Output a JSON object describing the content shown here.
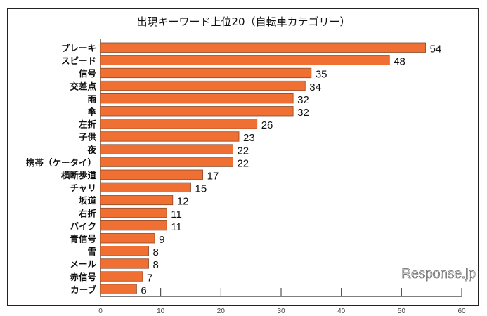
{
  "chart_data": {
    "type": "bar",
    "orientation": "horizontal",
    "title": "出現キーワード上位20（自転車カテゴリー）",
    "categories": [
      "ブレーキ",
      "スピード",
      "信号",
      "交差点",
      "雨",
      "傘",
      "左折",
      "子供",
      "夜",
      "携帯（ケータイ）",
      "横断歩道",
      "チャリ",
      "坂道",
      "右折",
      "バイク",
      "青信号",
      "雪",
      "メール",
      "赤信号",
      "カーブ"
    ],
    "values": [
      54,
      48,
      35,
      34,
      32,
      32,
      26,
      23,
      22,
      22,
      17,
      15,
      12,
      11,
      11,
      9,
      8,
      8,
      7,
      6
    ],
    "xlim": [
      0,
      60
    ],
    "xticks": [
      0,
      10,
      20,
      30,
      40,
      50,
      60
    ],
    "xlabel": "",
    "ylabel": "",
    "grid": false,
    "bar_color": "#f07033",
    "data_labels": true
  },
  "watermark": "Response.jp"
}
